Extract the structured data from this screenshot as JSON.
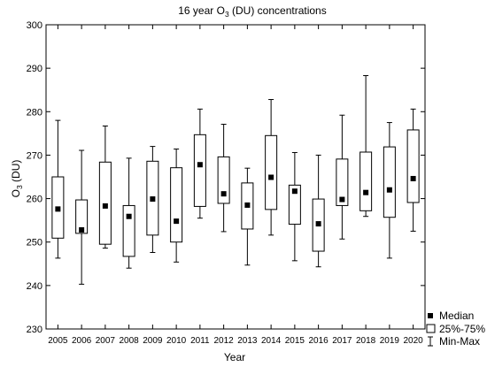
{
  "chart_data": {
    "type": "box",
    "title_prefix": "16 year O",
    "title_sub": "3",
    "title_suffix": " (DU) concentrations",
    "xlabel": "Year",
    "ylabel_prefix": "O",
    "ylabel_sub": "3",
    "ylabel_suffix": " (DU)",
    "ylim": [
      230,
      300
    ],
    "yticks": [
      230,
      240,
      250,
      260,
      270,
      280,
      290,
      300
    ],
    "grid": false,
    "legend_position": "bottom-right",
    "legend": [
      {
        "symbol": "median",
        "label": "Median"
      },
      {
        "symbol": "box",
        "label": "25%-75%"
      },
      {
        "symbol": "whisker",
        "label": "Min-Max"
      }
    ],
    "categories": [
      "2005",
      "2006",
      "2007",
      "2008",
      "2009",
      "2010",
      "2011",
      "2012",
      "2013",
      "2014",
      "2015",
      "2016",
      "2017",
      "2018",
      "2019",
      "2020"
    ],
    "min": [
      246.3,
      240.3,
      248.6,
      244.0,
      247.6,
      245.4,
      255.5,
      252.4,
      244.7,
      251.6,
      245.7,
      244.3,
      250.7,
      255.9,
      246.3,
      252.5
    ],
    "q1": [
      250.9,
      252.0,
      249.5,
      246.7,
      251.6,
      250.0,
      258.2,
      258.9,
      253.0,
      257.5,
      254.1,
      247.9,
      258.4,
      257.2,
      255.7,
      259.1
    ],
    "median": [
      257.6,
      252.8,
      258.3,
      255.9,
      259.9,
      254.8,
      267.8,
      261.1,
      258.5,
      264.9,
      261.7,
      254.2,
      259.8,
      261.4,
      262.0,
      264.6
    ],
    "q3": [
      265.0,
      259.7,
      268.4,
      258.4,
      268.6,
      267.1,
      274.7,
      269.6,
      263.6,
      274.5,
      263.1,
      259.9,
      269.1,
      270.7,
      271.9,
      275.8
    ],
    "max": [
      278.0,
      271.1,
      276.7,
      269.3,
      272.0,
      271.4,
      280.6,
      277.1,
      267.0,
      282.8,
      270.6,
      270.0,
      279.2,
      288.3,
      277.5,
      280.6
    ]
  }
}
